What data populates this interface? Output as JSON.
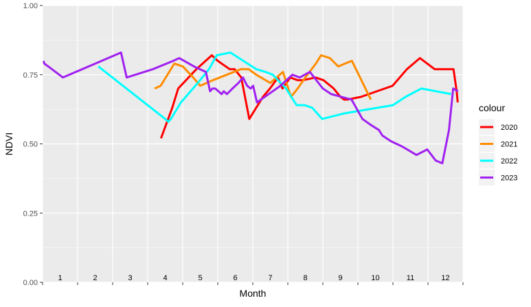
{
  "chart_data": {
    "type": "line",
    "title": "",
    "xlabel": "Month",
    "ylabel": "NDVI",
    "xlim": [
      0.5,
      12.5
    ],
    "ylim": [
      0.0,
      1.0
    ],
    "y_ticks": [
      0.0,
      0.25,
      0.5,
      0.75,
      1.0
    ],
    "y_tick_labels": [
      "0.00",
      "0.25",
      "0.50",
      "0.75",
      "1.00"
    ],
    "x_labels": [
      {
        "x": 1,
        "label": "1"
      },
      {
        "x": 2,
        "label": "2"
      },
      {
        "x": 3,
        "label": "3"
      },
      {
        "x": 4,
        "label": "4"
      },
      {
        "x": 5,
        "label": "5"
      },
      {
        "x": 6,
        "label": "6"
      },
      {
        "x": 7,
        "label": "7"
      },
      {
        "x": 8,
        "label": "8"
      },
      {
        "x": 9,
        "label": "9"
      },
      {
        "x": 10,
        "label": "10"
      },
      {
        "x": 11,
        "label": "11"
      },
      {
        "x": 12,
        "label": "12"
      }
    ],
    "x_breaks": [
      0.5,
      1.5,
      2.5,
      3.5,
      4.5,
      5.5,
      6.5,
      7.5,
      8.5,
      9.5,
      10.5,
      11.5,
      12.5
    ],
    "grid": true,
    "legend": {
      "title": "colour",
      "position": "right"
    },
    "series": [
      {
        "name": "2020",
        "color": "#ff0000",
        "x": [
          3.88,
          4.2,
          4.37,
          4.89,
          5.33,
          5.5,
          5.84,
          5.98,
          6.17,
          6.4,
          6.79,
          6.99,
          7.22,
          7.35,
          7.57,
          7.78,
          7.93,
          8.29,
          8.52,
          8.81,
          9.0,
          9.11,
          9.2,
          9.59,
          10.49,
          10.9,
          11.27,
          11.69,
          12.23,
          12.32,
          12.35
        ],
        "y": [
          0.52,
          0.63,
          0.7,
          0.77,
          0.82,
          0.8,
          0.77,
          0.77,
          0.74,
          0.59,
          0.67,
          0.7,
          0.74,
          0.7,
          0.74,
          0.73,
          0.73,
          0.74,
          0.73,
          0.7,
          0.67,
          0.66,
          0.66,
          0.67,
          0.71,
          0.77,
          0.81,
          0.77,
          0.77,
          0.69,
          0.65
        ]
      },
      {
        "name": "2021",
        "color": "#ff8c00",
        "x": [
          3.7,
          3.87,
          4.26,
          4.5,
          4.8,
          5.0,
          5.36,
          6.16,
          6.38,
          6.6,
          7.0,
          7.36,
          7.59,
          7.78,
          8.0,
          8.3,
          8.45,
          8.7,
          8.94,
          9.13,
          9.33,
          9.87
        ],
        "y": [
          0.7,
          0.71,
          0.79,
          0.78,
          0.74,
          0.71,
          0.73,
          0.77,
          0.77,
          0.75,
          0.72,
          0.76,
          0.67,
          0.7,
          0.74,
          0.79,
          0.82,
          0.81,
          0.78,
          0.79,
          0.8,
          0.66
        ]
      },
      {
        "name": "2022",
        "color": "#00ffff",
        "x": [
          2.09,
          4.0,
          4.09,
          4.16,
          4.45,
          4.93,
          5.25,
          5.47,
          5.86,
          6.6,
          6.86,
          7.07,
          7.45,
          7.65,
          7.75,
          7.98,
          8.2,
          8.48,
          9.1,
          10.5,
          10.86,
          11.31,
          12.16
        ],
        "y": [
          0.78,
          0.59,
          0.58,
          0.59,
          0.65,
          0.72,
          0.77,
          0.82,
          0.83,
          0.77,
          0.76,
          0.75,
          0.7,
          0.66,
          0.64,
          0.64,
          0.63,
          0.59,
          0.61,
          0.64,
          0.67,
          0.7,
          0.68
        ]
      },
      {
        "name": "2023",
        "color": "#a020f0",
        "x": [
          0.53,
          0.55,
          0.66,
          1.08,
          2.74,
          2.9,
          3.65,
          4.23,
          4.4,
          4.82,
          5.16,
          5.28,
          5.35,
          5.43,
          5.61,
          5.67,
          5.76,
          5.92,
          6.09,
          6.22,
          6.34,
          6.44,
          6.51,
          6.62,
          7.29,
          7.63,
          7.84,
          8.13,
          8.5,
          8.74,
          9.32,
          9.63,
          9.85,
          10.1,
          10.2,
          10.44,
          10.77,
          11.17,
          11.48,
          11.72,
          11.91,
          12.1,
          12.22,
          12.36
        ],
        "y": [
          0.8,
          0.79,
          0.78,
          0.74,
          0.83,
          0.74,
          0.77,
          0.8,
          0.81,
          0.78,
          0.76,
          0.69,
          0.7,
          0.7,
          0.68,
          0.69,
          0.68,
          0.7,
          0.72,
          0.74,
          0.71,
          0.7,
          0.71,
          0.65,
          0.71,
          0.75,
          0.74,
          0.76,
          0.7,
          0.68,
          0.66,
          0.59,
          0.57,
          0.55,
          0.53,
          0.51,
          0.49,
          0.46,
          0.48,
          0.44,
          0.43,
          0.55,
          0.7,
          0.69
        ]
      }
    ]
  }
}
